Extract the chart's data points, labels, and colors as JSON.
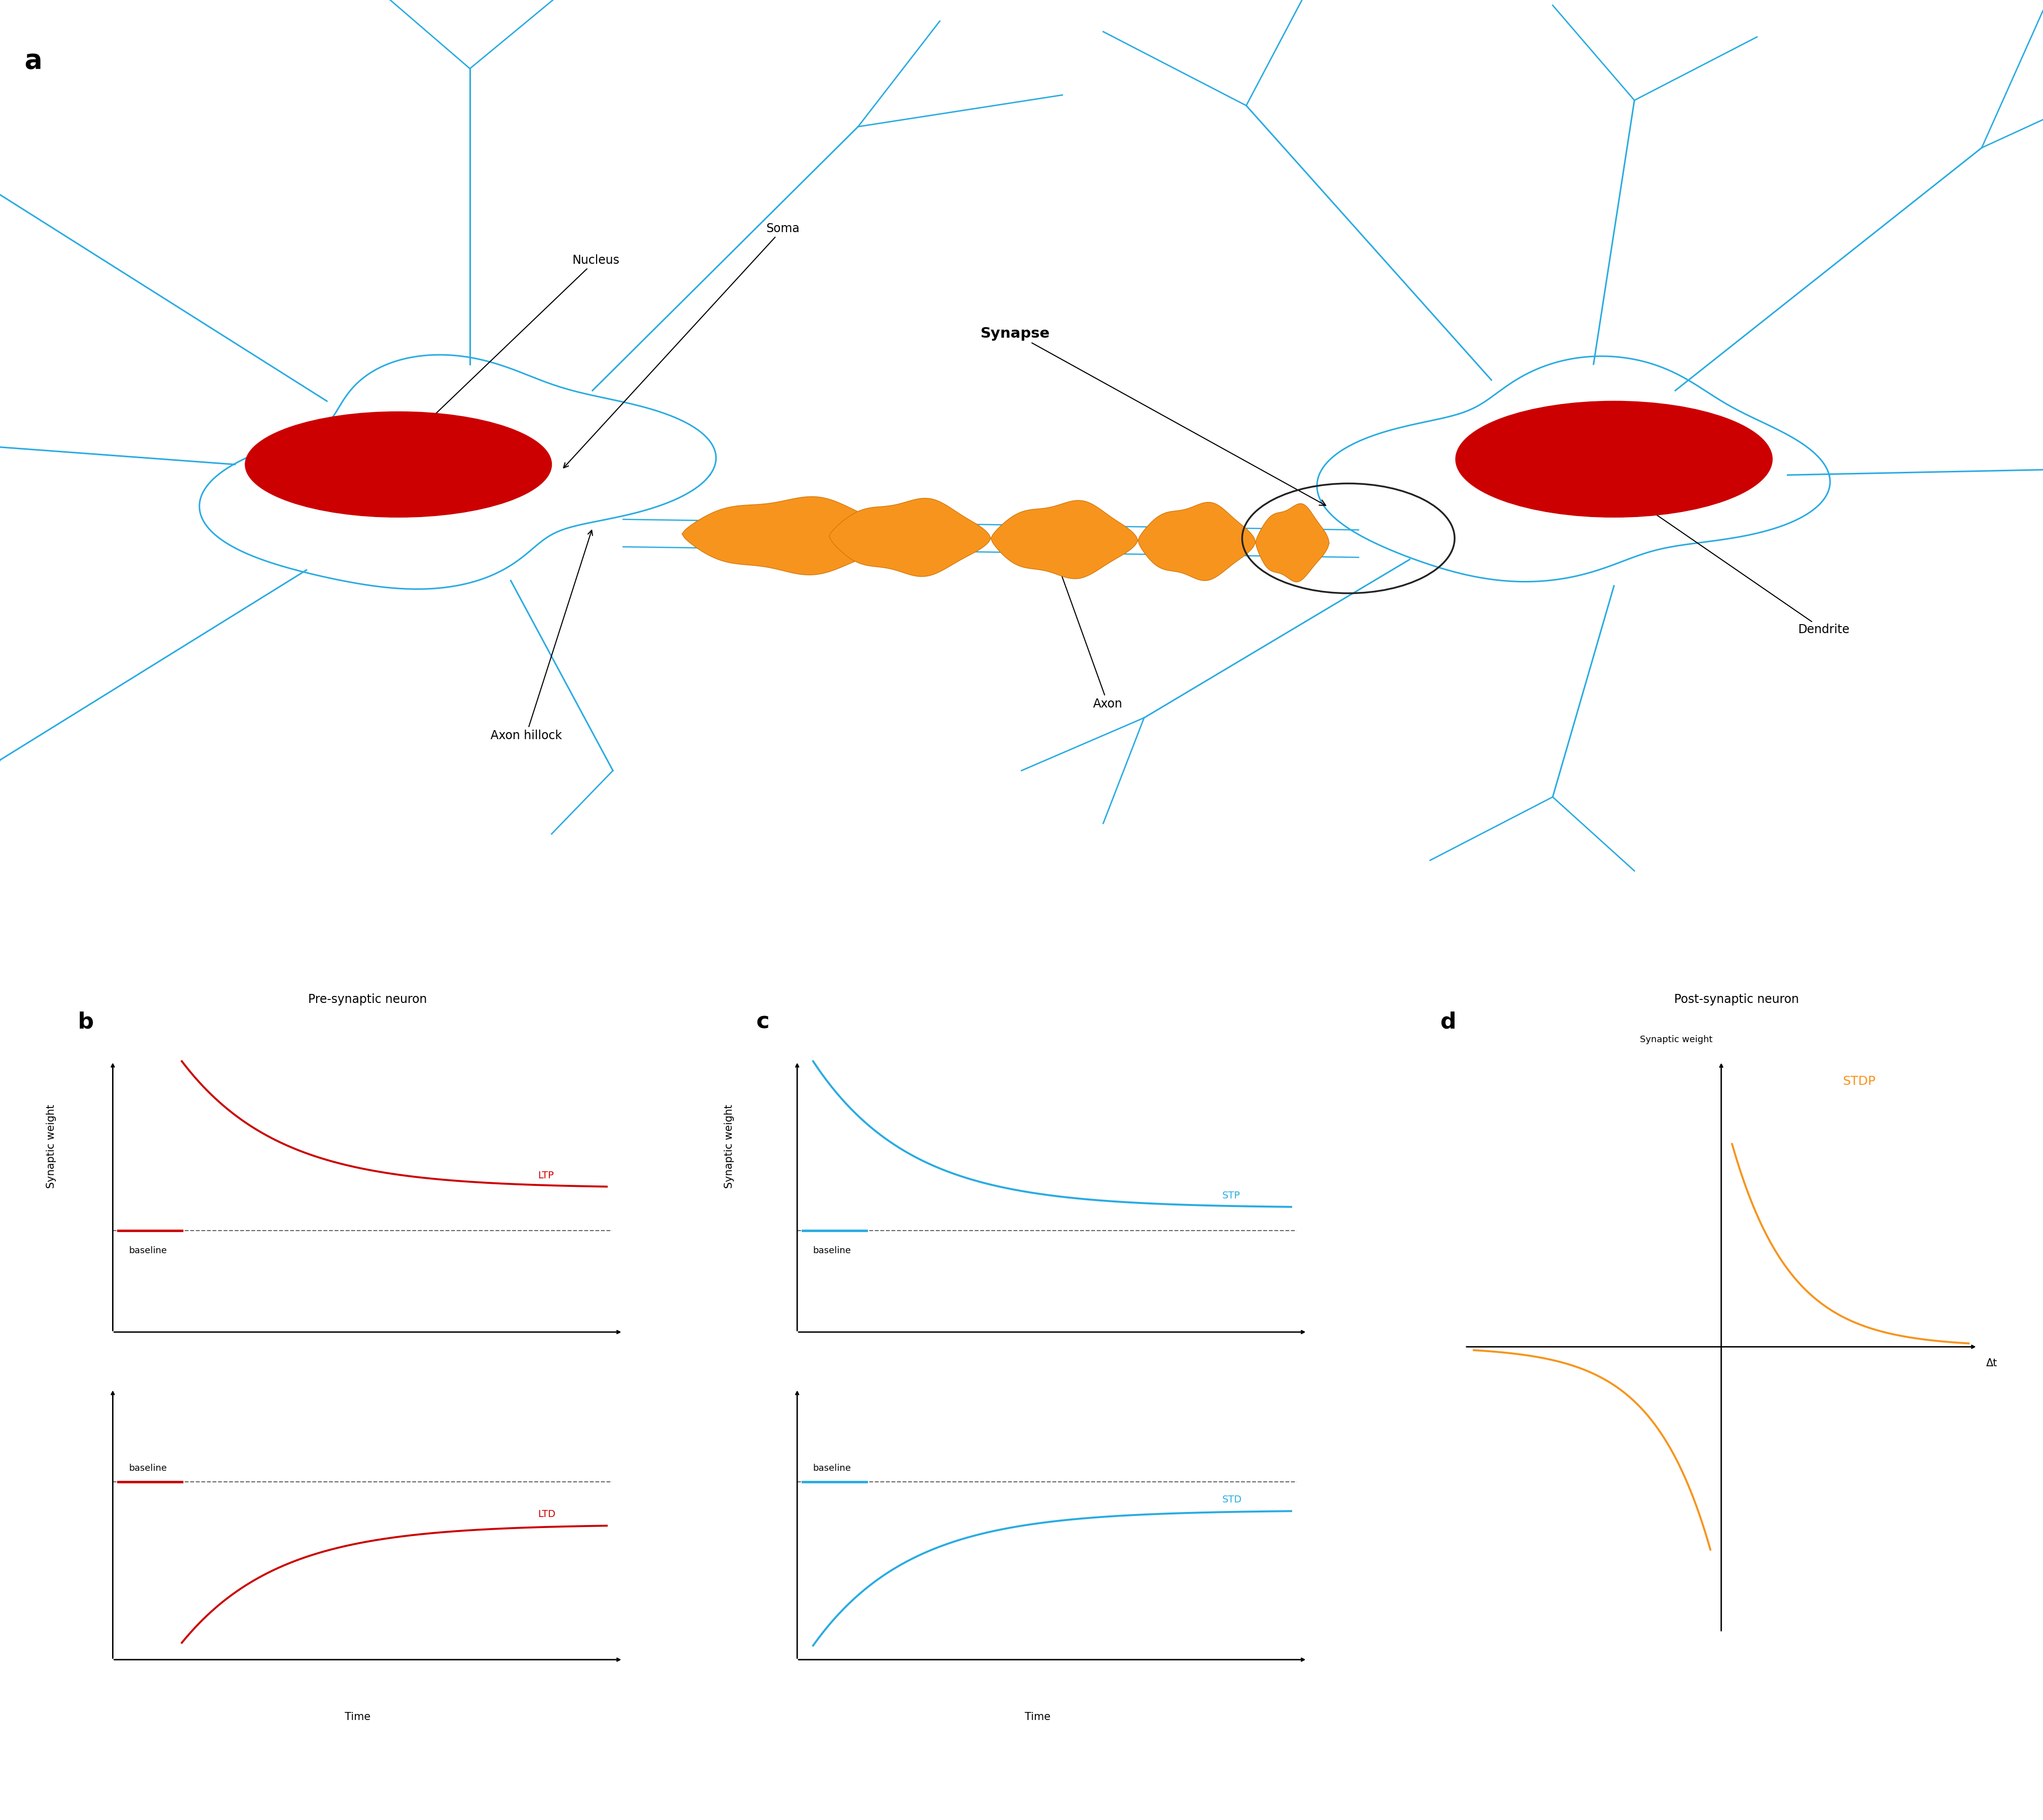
{
  "bg_color": "#ffffff",
  "neuron_color": "#29ABE2",
  "nucleus_color": "#CC0000",
  "axon_color": "#F7941D",
  "axon_outline": "#D4780A",
  "synapse_circle_color": "#222222",
  "label_color": "#222222",
  "ltp_ltd_color": "#CC0000",
  "stp_std_color": "#29ABE2",
  "stdp_color": "#F7941D",
  "panel_a_label": "a",
  "panel_b_label": "b",
  "panel_c_label": "c",
  "panel_d_label": "d",
  "nucleus_label": "Nucleus",
  "soma_label": "Soma",
  "axon_hillock_label": "Axon hillock",
  "axon_label": "Axon",
  "synapse_label": "Synapse",
  "dendrite_label": "Dendrite",
  "pre_synaptic_label": "Pre-synaptic neuron",
  "post_synaptic_label": "Post-synaptic neuron",
  "ltp_label": "LTP",
  "ltd_label": "LTD",
  "stp_label": "STP",
  "std_label": "STD",
  "stdp_label": "STDP",
  "baseline_label": "baseline",
  "synaptic_weight_label": "Synaptic weight",
  "time_label": "Time",
  "delta_t_label": "Δt"
}
